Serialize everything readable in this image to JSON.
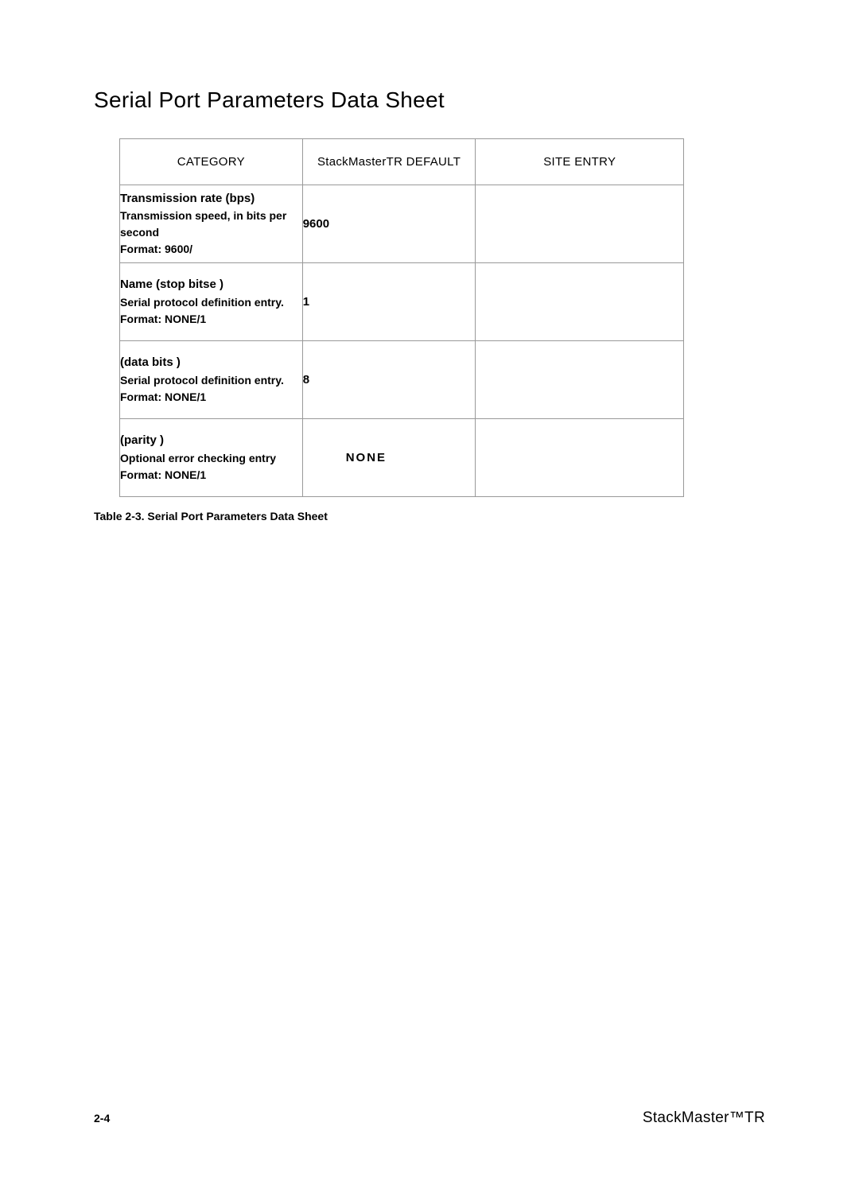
{
  "page_title": "Serial Port Parameters Data Sheet",
  "table": {
    "headers": {
      "category": "CATEGORY",
      "default": "StackMasterTR DEFAULT",
      "entry": "SITE ENTRY"
    },
    "rows": [
      {
        "cat_name": "Transmission rate (bps)",
        "cat_desc": "Transmission speed, in bits per second",
        "cat_format": "Format: 9600/",
        "default": "9600",
        "entry": ""
      },
      {
        "cat_name": "Name  (stop bitse    )",
        "cat_desc": "Serial protocol definition entry.",
        "cat_format": "Format: NONE/1",
        "default": "1",
        "entry": ""
      },
      {
        "cat_name": " (data bits   )",
        "cat_desc": "Serial protocol definition entry.",
        "cat_format": "Format: NONE/1",
        "default": "8",
        "entry": ""
      },
      {
        "cat_name": " (parity   )",
        "cat_desc": "Optional error checking entry",
        "cat_format": "Format: NONE/1",
        "default": "NONE",
        "entry": ""
      }
    ]
  },
  "caption": "Table 2-3. Serial Port Parameters Data Sheet",
  "footer": {
    "page_number": "2-4",
    "product": "StackMaster™TR"
  }
}
